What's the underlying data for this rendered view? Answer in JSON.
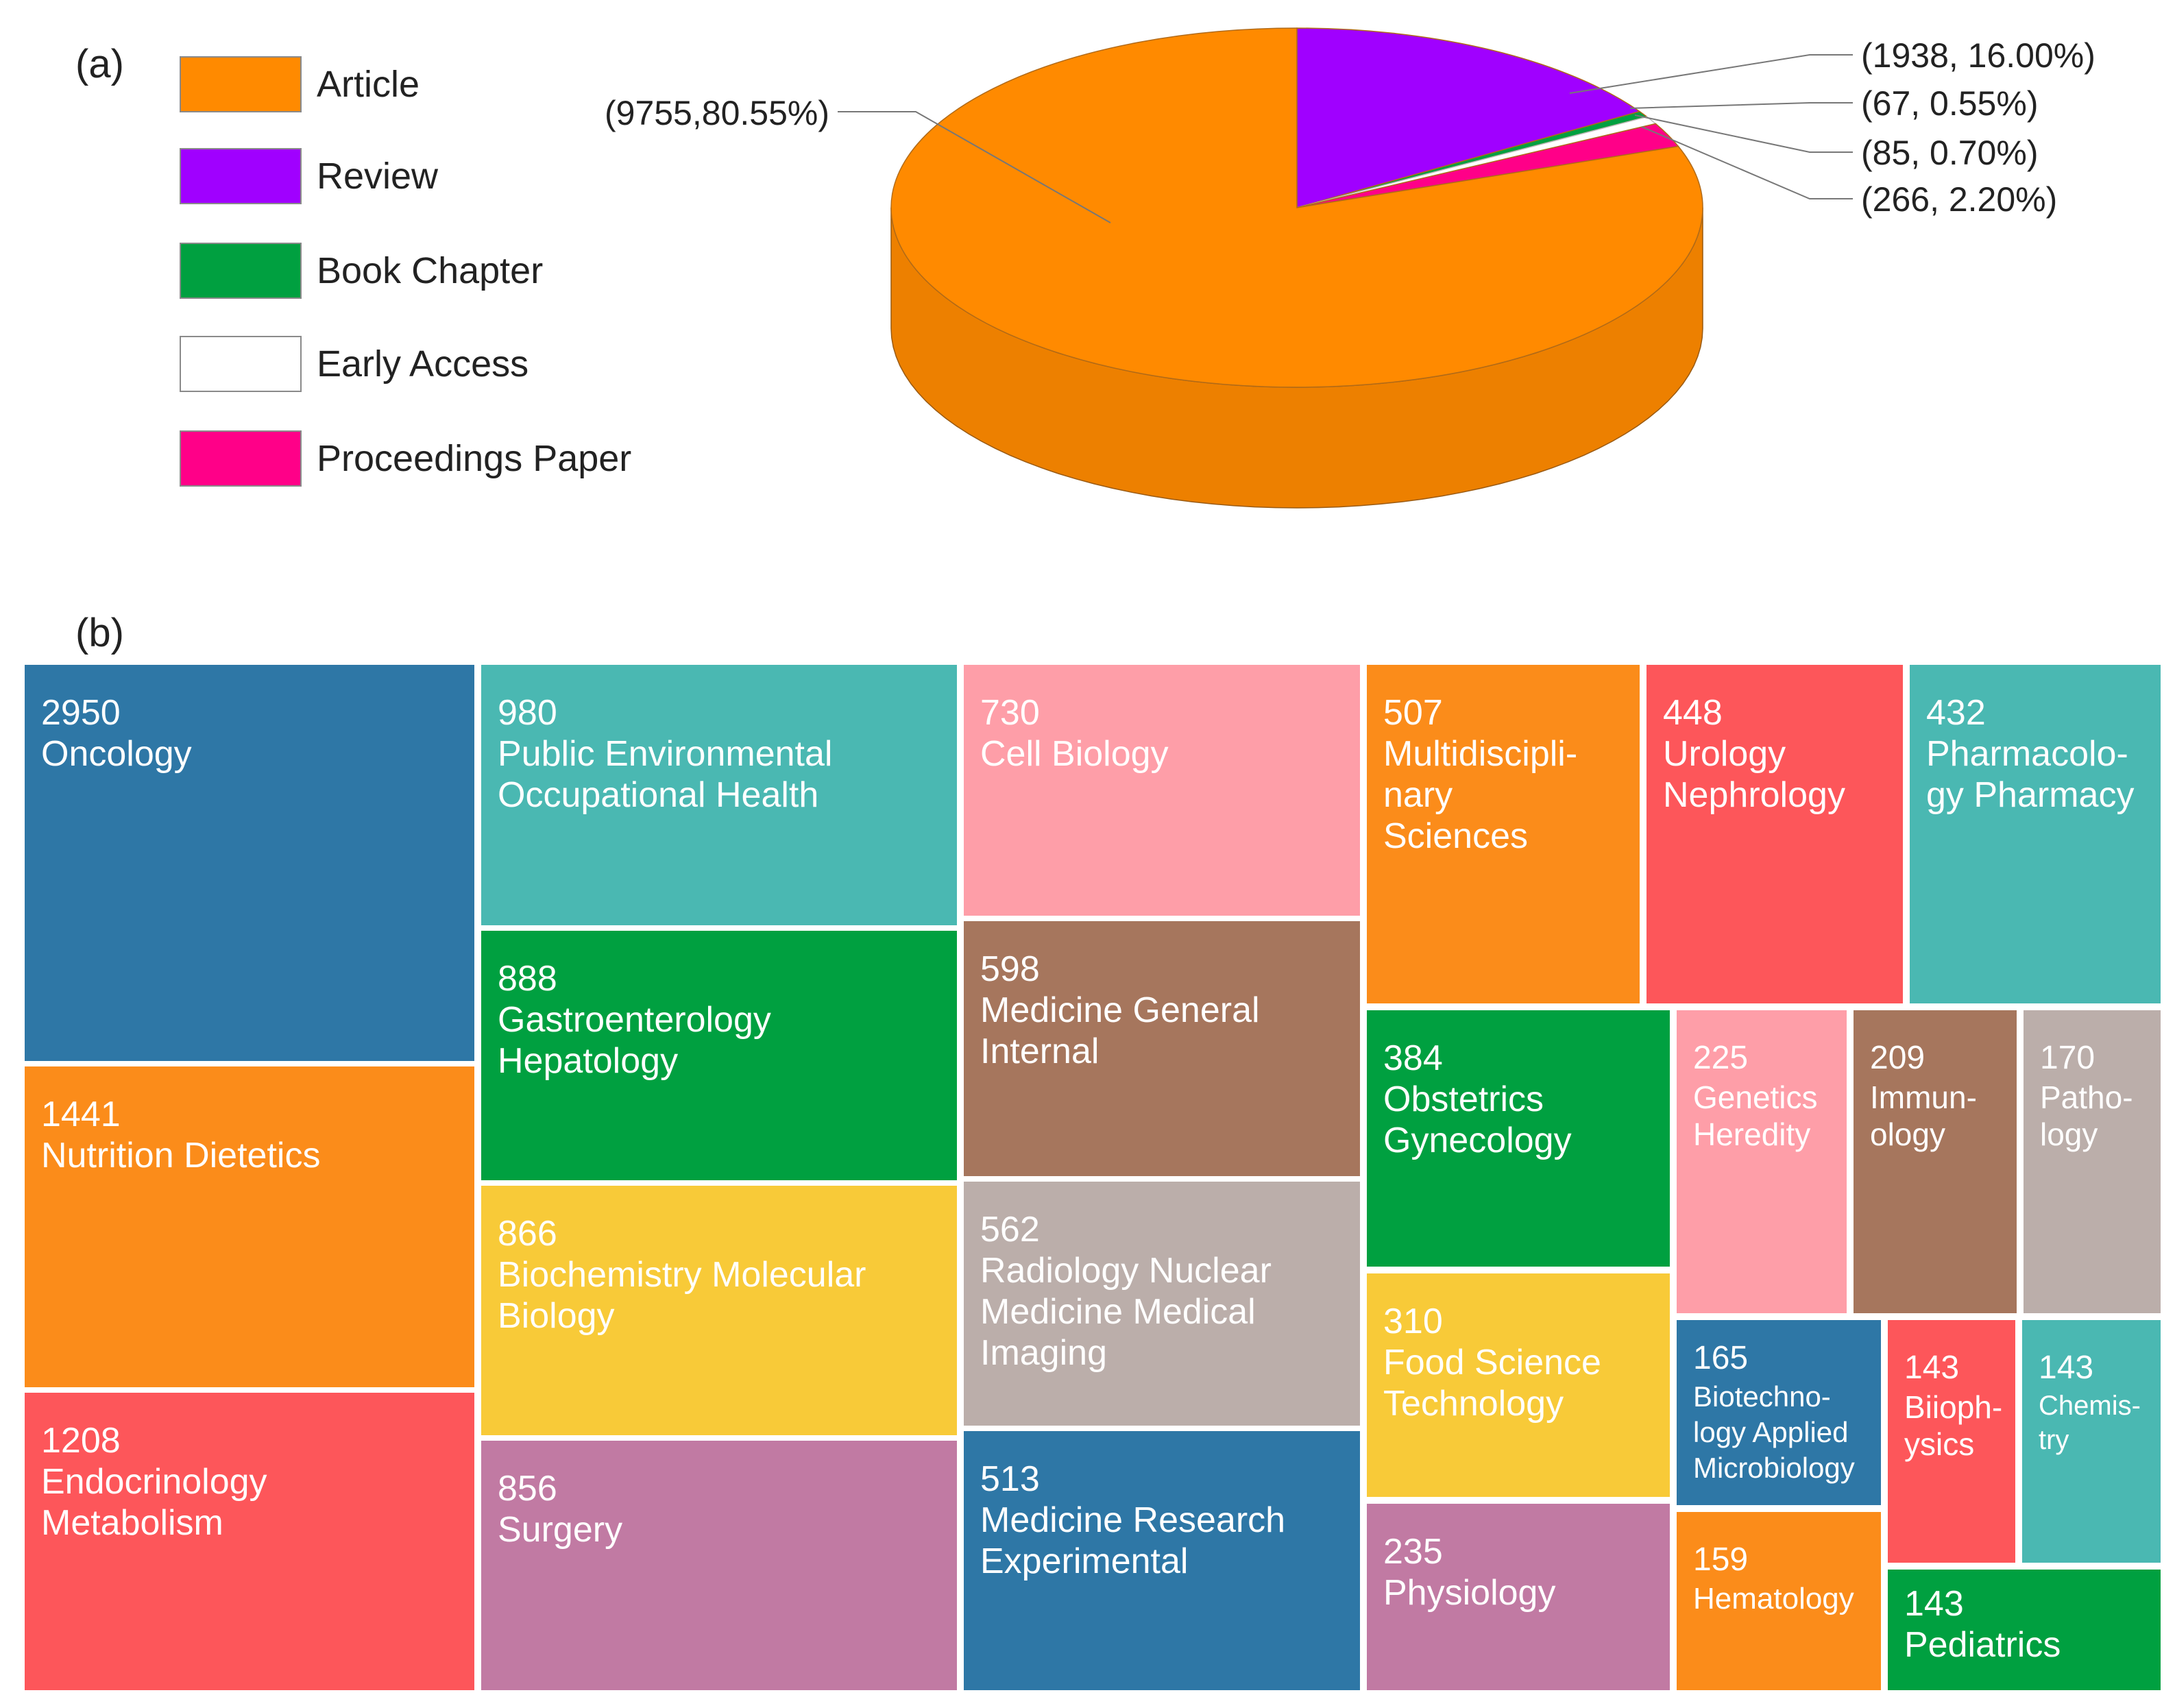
{
  "panel_a_label": "(a)",
  "panel_b_label": "(b)",
  "chart_data": [
    {
      "type": "pie",
      "slices": [
        {
          "name": "Article",
          "value": 9755,
          "percent": "80.55%",
          "label": "(9755,80.55%)",
          "color": "#ff8a00"
        },
        {
          "name": "Review",
          "value": 1938,
          "percent": "16.00%",
          "label": "(1938, 16.00%)",
          "color": "#a000ff"
        },
        {
          "name": "Book Chapter",
          "value": 67,
          "percent": "0.55%",
          "label": "(67, 0.55%)",
          "color": "#00a040"
        },
        {
          "name": "Early Access",
          "value": 85,
          "percent": "0.70%",
          "label": "(85, 0.70%)",
          "color": "#ffffff"
        },
        {
          "name": "Proceedings Paper",
          "value": 266,
          "percent": "2.20%",
          "label": "(266, 2.20%)",
          "color": "#ff0088"
        }
      ],
      "legend_placement": "left"
    },
    {
      "type": "treemap",
      "cells": [
        {
          "value": 2950,
          "name": "Oncology",
          "color": "#2e77a6"
        },
        {
          "value": 1441,
          "name": "Nutrition Dietetics",
          "color": "#fb8c1a"
        },
        {
          "value": 1208,
          "name": "Endocrinology\nMetabolism",
          "color": "#fd565a"
        },
        {
          "value": 980,
          "name": "Public Environmental\nOccupational Health",
          "color": "#4ab8b2"
        },
        {
          "value": 888,
          "name": "Gastroenterology\nHepatology",
          "color": "#00a040"
        },
        {
          "value": 866,
          "name": "Biochemistry Molecular\nBiology",
          "color": "#f8ca38"
        },
        {
          "value": 856,
          "name": "Surgery",
          "color": "#c17aa3"
        },
        {
          "value": 730,
          "name": "Cell Biology",
          "color": "#fe9ea8"
        },
        {
          "value": 598,
          "name": "Medicine General\nInternal",
          "color": "#a6765d"
        },
        {
          "value": 562,
          "name": "Radiology Nuclear\nMedicine Medical\nImaging",
          "color": "#bbaeaa"
        },
        {
          "value": 513,
          "name": "Medicine Research\nExperimental",
          "color": "#2e77a6"
        },
        {
          "value": 507,
          "name": "Multidiscipli-\nnary\nSciences",
          "color": "#fb8c1a"
        },
        {
          "value": 448,
          "name": "Urology\nNephrology",
          "color": "#fd565a"
        },
        {
          "value": 432,
          "name": "Pharmacolo-\ngy Pharmacy",
          "color": "#4ab8b2"
        },
        {
          "value": 384,
          "name": "Obstetrics\nGynecology",
          "color": "#00a040"
        },
        {
          "value": 310,
          "name": "Food Science\nTechnology",
          "color": "#f8ca38"
        },
        {
          "value": 235,
          "name": "Physiology",
          "color": "#c17aa3"
        },
        {
          "value": 225,
          "name": "Genetics\nHeredity",
          "color": "#fe9ea8"
        },
        {
          "value": 209,
          "name": "Immun-\nology",
          "color": "#a6765d"
        },
        {
          "value": 170,
          "name": "Patho-\nlogy",
          "color": "#bbaeaa"
        },
        {
          "value": 165,
          "name": "Biotechno-\nlogy Applied\nMicrobiology",
          "color": "#2e77a6"
        },
        {
          "value": 159,
          "name": "Hematology",
          "color": "#fb8c1a"
        },
        {
          "value": 143,
          "name": "Biioph-\nysics",
          "color": "#fd565a"
        },
        {
          "value": 143,
          "name": "Chemis-\ntry",
          "color": "#4ab8b2"
        },
        {
          "value": 143,
          "name": "Pediatrics",
          "color": "#00a040"
        }
      ]
    }
  ]
}
